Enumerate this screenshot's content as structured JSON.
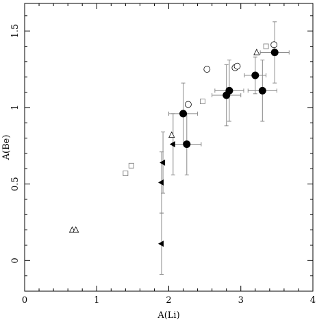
{
  "chart_data": {
    "type": "scatter",
    "title": "",
    "xlabel": "A(Li)",
    "ylabel": "A(Be)",
    "xlim": [
      0,
      4
    ],
    "ylim": [
      -0.2,
      1.68
    ],
    "x_ticks": [
      0,
      1,
      2,
      3,
      4
    ],
    "x_tick_labels": [
      "0",
      "1",
      "2",
      "3",
      "4"
    ],
    "y_ticks": [
      0,
      0.5,
      1,
      1.5
    ],
    "y_tick_labels": [
      "0",
      "0.5",
      "1",
      "1.5"
    ],
    "grid": false,
    "legend": "none",
    "series": [
      {
        "marker": "filled-circle",
        "color": "#000000",
        "points": [
          {
            "x": 2.2,
            "y": 0.96,
            "xerr": 0.2,
            "yerr": 0.2
          },
          {
            "x": 2.25,
            "y": 0.76,
            "xerr": 0.2,
            "yerr": 0.2
          },
          {
            "x": 2.8,
            "y": 1.08,
            "xerr": 0.2,
            "yerr": 0.2
          },
          {
            "x": 2.84,
            "y": 1.11,
            "xerr": 0.2,
            "yerr": 0.2
          },
          {
            "x": 3.2,
            "y": 1.21,
            "xerr": 0.15,
            "yerr": 0.12
          },
          {
            "x": 3.3,
            "y": 1.11,
            "xerr": 0.2,
            "yerr": 0.2
          },
          {
            "x": 3.47,
            "y": 1.36,
            "xerr": 0.2,
            "yerr": 0.2
          }
        ]
      },
      {
        "marker": "open-circle",
        "color": "#000000",
        "points": [
          {
            "x": 2.27,
            "y": 1.02
          },
          {
            "x": 2.53,
            "y": 1.25
          },
          {
            "x": 2.92,
            "y": 1.26
          },
          {
            "x": 2.95,
            "y": 1.27
          },
          {
            "x": 3.46,
            "y": 1.41
          }
        ]
      },
      {
        "marker": "open-square",
        "color": "#808080",
        "points": [
          {
            "x": 1.4,
            "y": 0.57
          },
          {
            "x": 1.48,
            "y": 0.62
          },
          {
            "x": 2.47,
            "y": 1.04
          },
          {
            "x": 3.35,
            "y": 1.4
          }
        ]
      },
      {
        "marker": "open-triangle",
        "color": "#000000",
        "points": [
          {
            "x": 0.66,
            "y": 0.2
          },
          {
            "x": 0.71,
            "y": 0.2
          },
          {
            "x": 2.04,
            "y": 0.82
          },
          {
            "x": 3.22,
            "y": 1.36
          }
        ]
      },
      {
        "marker": "filled-left-triangle",
        "color": "#000000",
        "points": [
          {
            "x": 1.9,
            "y": 0.11,
            "yerr": 0.2
          },
          {
            "x": 1.9,
            "y": 0.51,
            "yerr": 0.2
          },
          {
            "x": 1.92,
            "y": 0.64,
            "yerr": 0.2
          },
          {
            "x": 2.06,
            "y": 0.76,
            "yerr": 0.2
          }
        ]
      }
    ]
  }
}
